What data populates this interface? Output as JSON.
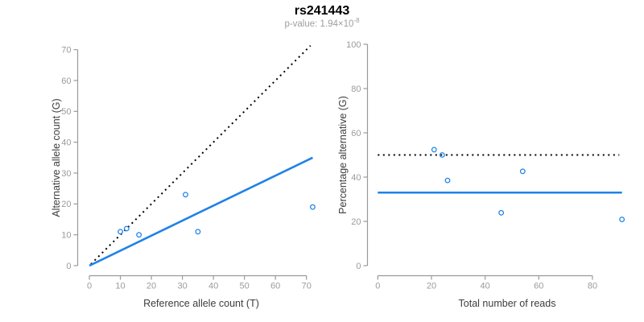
{
  "header": {
    "title": "rs241443",
    "p_value_base": "p-value: 1.94×10",
    "p_value_exponent": "-8"
  },
  "colors": {
    "accent_blue": "#1E82E8",
    "dotted_black": "#000000",
    "axis_line": "#9a9a9a",
    "tick_label": "#9b9b9b",
    "axis_title": "#3d3d3d",
    "title": "#000000",
    "subtitle": "#9e9e9e"
  },
  "chart_data": {
    "figure_title": "rs241443",
    "p_value_text": "p-value: 1.94×10^-8",
    "panels": [
      {
        "type": "scatter",
        "xlabel": "Reference allele count (T)",
        "ylabel": "Alternative allele count (G)",
        "xlim": [
          0,
          72.5
        ],
        "ylim": [
          0,
          72.5
        ],
        "xticks": [
          0,
          10,
          20,
          30,
          40,
          50,
          60,
          70
        ],
        "yticks": [
          0,
          10,
          20,
          30,
          40,
          50,
          60,
          70
        ],
        "grid": false,
        "legend": null,
        "points": [
          [
            10,
            11
          ],
          [
            12,
            12
          ],
          [
            16,
            10
          ],
          [
            31,
            23
          ],
          [
            35,
            11
          ],
          [
            72,
            19
          ]
        ],
        "lines": [
          {
            "name": "identity-line",
            "style": "dotted",
            "color": "dotted_black",
            "x1": 0.5,
            "y1": 0.5,
            "x2": 71.3,
            "y2": 71.3
          },
          {
            "name": "fit-line",
            "style": "solid",
            "color": "accent_blue",
            "x1": 0,
            "y1": 0,
            "x2": 72,
            "y2": 35
          }
        ]
      },
      {
        "type": "scatter",
        "xlabel": "Total number of reads",
        "ylabel": "Percentage alternative (G)",
        "xlim": [
          0,
          97.5
        ],
        "ylim": [
          0,
          100
        ],
        "xticks": [
          0,
          20,
          40,
          60,
          80
        ],
        "yticks": [
          0,
          20,
          40,
          60,
          80,
          100
        ],
        "grid": false,
        "legend": null,
        "points": [
          [
            21,
            52.4
          ],
          [
            24,
            50
          ],
          [
            26,
            38.5
          ],
          [
            46,
            23.9
          ],
          [
            54,
            42.6
          ],
          [
            91,
            20.9
          ]
        ],
        "lines": [
          {
            "name": "expected-50pct-line",
            "style": "dotted",
            "color": "dotted_black",
            "x1": 0,
            "y1": 50,
            "x2": 90,
            "y2": 50
          },
          {
            "name": "mean-percentage-line",
            "style": "solid",
            "color": "accent_blue",
            "x1": 0,
            "y1": 33,
            "x2": 91,
            "y2": 33
          }
        ]
      }
    ]
  }
}
